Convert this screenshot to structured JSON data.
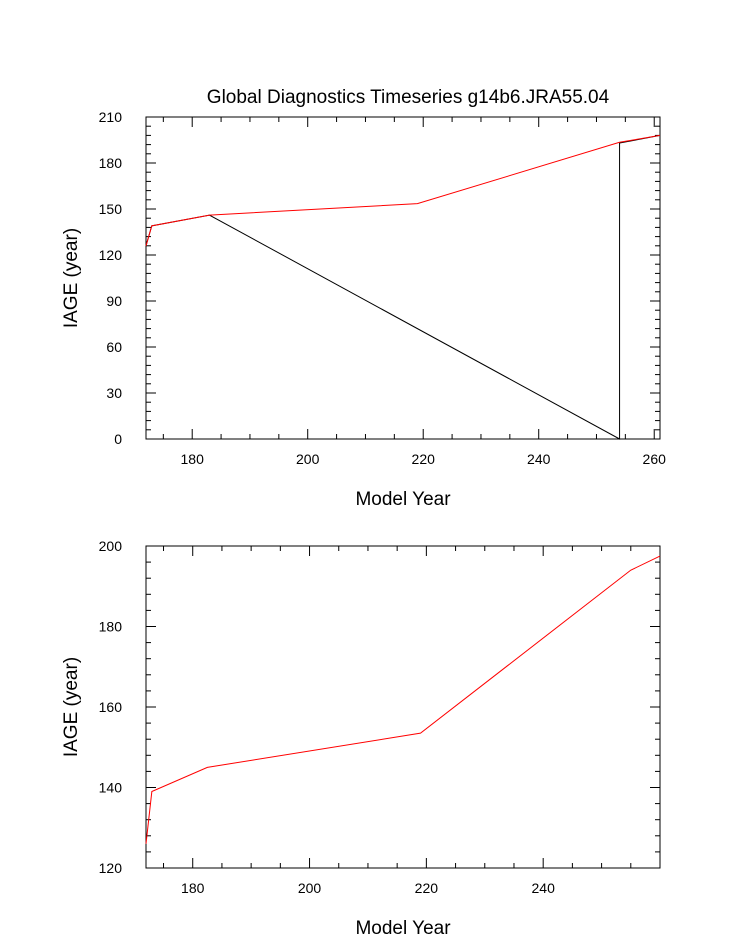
{
  "chart_data": [
    {
      "type": "line",
      "title": "Global Diagnostics Timeseries g14b6.JRA55.04",
      "xlabel": "Model Year",
      "ylabel": "IAGE (year)",
      "xlim": [
        172,
        261
      ],
      "ylim": [
        0,
        210
      ],
      "xticks": [
        180,
        200,
        220,
        240,
        260
      ],
      "yticks": [
        0,
        30,
        60,
        90,
        120,
        150,
        180,
        210
      ],
      "grid": false,
      "series": [
        {
          "color": "#000000",
          "x": [
            172,
            173,
            183,
            254,
            254,
            261
          ],
          "y": [
            126,
            139,
            146,
            0,
            193,
            198
          ]
        },
        {
          "color": "#ff0000",
          "x": [
            172,
            173,
            183,
            219,
            254,
            261
          ],
          "y": [
            126,
            139,
            146,
            153.5,
            193.5,
            198
          ]
        }
      ]
    },
    {
      "type": "line",
      "title": "",
      "xlabel": "Model Year",
      "ylabel": "IAGE (year)",
      "xlim": [
        172,
        260
      ],
      "ylim": [
        120,
        200
      ],
      "xticks": [
        180,
        200,
        220,
        240
      ],
      "yticks": [
        120,
        140,
        160,
        180,
        200
      ],
      "grid": false,
      "series": [
        {
          "color": "#ff0000",
          "x": [
            172,
            173,
            182.5,
            219,
            255,
            260
          ],
          "y": [
            126,
            139,
            145,
            153.5,
            194,
            197.5
          ]
        }
      ]
    }
  ]
}
